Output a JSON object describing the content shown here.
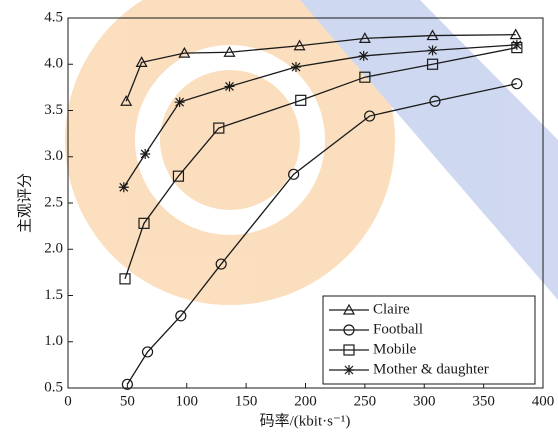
{
  "chart_data": {
    "type": "line",
    "x_label": "码率/(kbit·s⁻¹)",
    "y_label": "主观评分",
    "xlim": [
      0,
      400
    ],
    "xticks": [
      0,
      50,
      100,
      150,
      200,
      250,
      300,
      350,
      400
    ],
    "ylim": [
      0.5,
      4.5
    ],
    "yticks": [
      0.5,
      {
        "value": 1,
        "label": "1.0"
      },
      1.5,
      {
        "value": 2,
        "label": "2.0"
      },
      2.5,
      {
        "value": 3,
        "label": "3.0"
      },
      3.5,
      {
        "value": 4,
        "label": "4.0"
      },
      4.5
    ],
    "legend": "lower right",
    "series": [
      {
        "name": "Claire",
        "color": "#1a1a1a",
        "marker": "triangle",
        "x": [
          49,
          62,
          98,
          136,
          195,
          250,
          307,
          377
        ],
        "values": [
          3.6,
          4.02,
          4.12,
          4.13,
          4.2,
          4.28,
          4.31,
          4.32
        ]
      },
      {
        "name": "Football",
        "color": "#1a1a1a",
        "marker": "circle",
        "x": [
          50,
          67,
          95,
          129,
          190,
          254,
          309,
          378
        ],
        "values": [
          0.54,
          0.89,
          1.28,
          1.84,
          2.81,
          3.44,
          3.6,
          3.79
        ]
      },
      {
        "name": "Mobile",
        "color": "#1a1a1a",
        "marker": "square",
        "x": [
          48,
          64,
          93,
          127,
          196,
          250,
          307,
          378
        ],
        "values": [
          1.68,
          2.28,
          2.79,
          3.31,
          3.61,
          3.86,
          4.0,
          4.18
        ]
      },
      {
        "name": "Mother & daughter",
        "color": "#1a1a1a",
        "marker": "star",
        "x": [
          47,
          65,
          94,
          136,
          192,
          249,
          307,
          378
        ],
        "values": [
          2.67,
          3.03,
          3.59,
          3.76,
          3.97,
          4.09,
          4.15,
          4.21
        ]
      }
    ]
  }
}
